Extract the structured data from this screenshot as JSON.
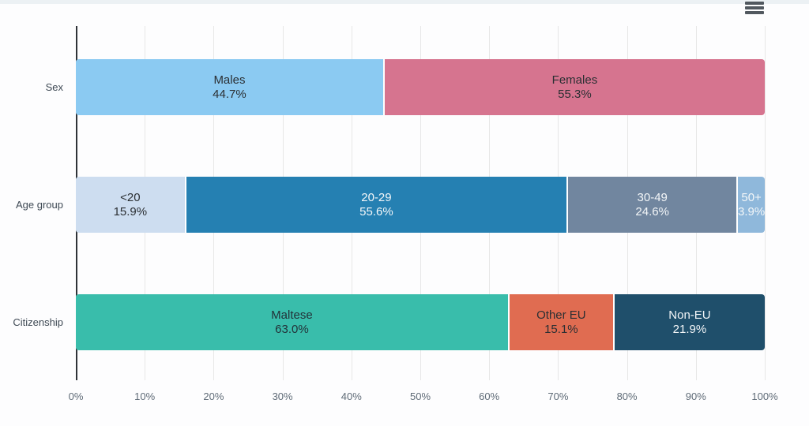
{
  "page": {
    "top_strip_color": "#ecf1f4",
    "background_color": "#fdfdfe"
  },
  "toolbar": {
    "context_menu_icon": "hamburger-icon",
    "icon_color": "#51585f"
  },
  "chart_data": {
    "type": "bar",
    "orientation": "horizontal",
    "stacked": true,
    "title": "",
    "xlabel": "",
    "ylabel": "",
    "grid": true,
    "legend": false,
    "categories": [
      "Sex",
      "Age group",
      "Citizenship"
    ],
    "x_axis": {
      "min": 0,
      "max": 100,
      "unit": "%",
      "ticks": [
        "0%",
        "10%",
        "20%",
        "30%",
        "40%",
        "50%",
        "60%",
        "70%",
        "80%",
        "90%",
        "100%"
      ]
    },
    "axis_colors": {
      "gridline": "#e7e7e7",
      "axis_line": "#2f3338",
      "tick_label": "#5f6b77",
      "category_label": "#3e4954"
    },
    "rows": [
      {
        "category": "Sex",
        "segments": [
          {
            "label": "Males",
            "value": 44.7,
            "pct_label": "44.7%",
            "color": "#8bcaf2",
            "text_color": "#2b2f33"
          },
          {
            "label": "Females",
            "value": 55.3,
            "pct_label": "55.3%",
            "color": "#d6748f",
            "text_color": "#2b2f33"
          }
        ]
      },
      {
        "category": "Age group",
        "segments": [
          {
            "label": "<20",
            "value": 15.9,
            "pct_label": "15.9%",
            "color": "#cdddf0",
            "text_color": "#2b2f33"
          },
          {
            "label": "20-29",
            "value": 55.6,
            "pct_label": "55.6%",
            "color": "#2580b2",
            "text_color": "#f3f6f8"
          },
          {
            "label": "30-49",
            "value": 24.6,
            "pct_label": "24.6%",
            "color": "#71869f",
            "text_color": "#f3f6f8"
          },
          {
            "label": "50+",
            "value": 3.9,
            "pct_label": "3.9%",
            "color": "#8fb8db",
            "text_color": "#f3f6f8"
          }
        ]
      },
      {
        "category": "Citizenship",
        "segments": [
          {
            "label": "Maltese",
            "value": 63.0,
            "pct_label": "63.0%",
            "color": "#39bdab",
            "text_color": "#233239"
          },
          {
            "label": "Other EU",
            "value": 15.1,
            "pct_label": "15.1%",
            "color": "#e06c51",
            "text_color": "#2b2f33"
          },
          {
            "label": "Non-EU",
            "value": 21.9,
            "pct_label": "21.9%",
            "color": "#1f4f6b",
            "text_color": "#f3f6f8"
          }
        ]
      }
    ]
  }
}
